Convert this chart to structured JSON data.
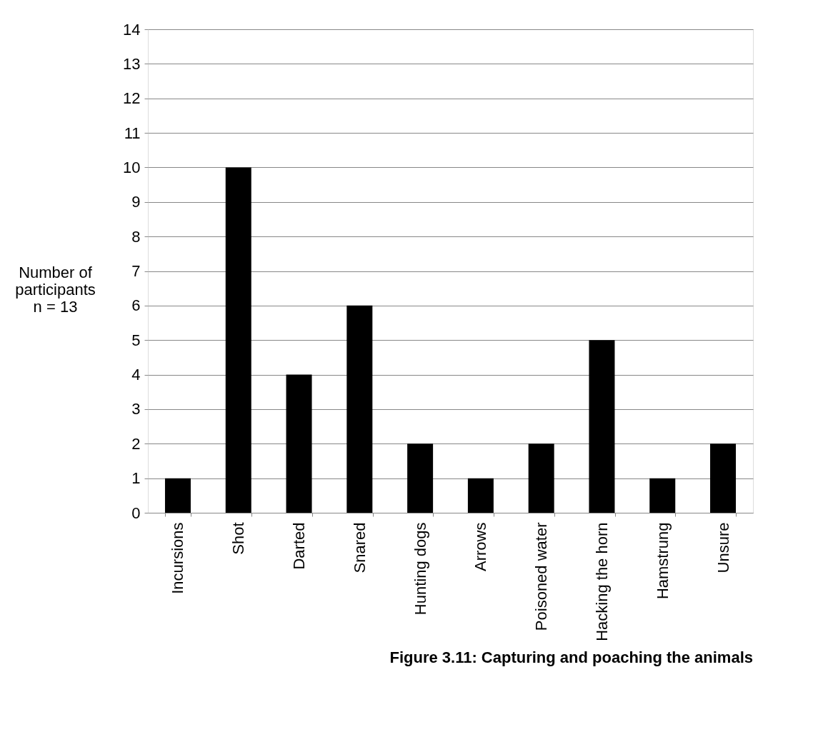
{
  "chart_data": {
    "type": "bar",
    "title": "Figure 3.11: Capturing and poaching the animals",
    "ylabel": "Number of\nparticipants\nn = 13",
    "categories": [
      "Incursions",
      "Shot",
      "Darted",
      "Snared",
      "Hunting dogs",
      "Arrows",
      "Poisoned water",
      "Hacking the horn",
      "Hamstrung",
      "Unsure"
    ],
    "values": [
      1,
      10,
      4,
      6,
      2,
      1,
      2,
      5,
      1,
      2
    ],
    "color": "#000000",
    "ylim": [
      0,
      14
    ],
    "yticks": [
      0,
      1,
      2,
      3,
      4,
      5,
      6,
      7,
      8,
      9,
      10,
      11,
      12,
      13,
      14
    ],
    "grid": "y"
  }
}
